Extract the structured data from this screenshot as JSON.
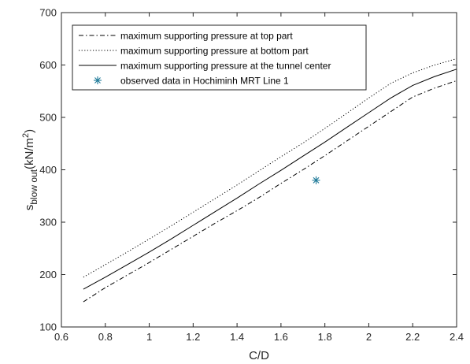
{
  "chart_data": {
    "type": "line",
    "xlabel": "C/D",
    "ylabel": {
      "main": "s",
      "sub": "blow out",
      "unit_open": "(kN/m",
      "unit_sup": "2",
      "unit_close": ")"
    },
    "xlim": [
      0.6,
      2.4
    ],
    "ylim": [
      100,
      700
    ],
    "xticks": [
      "0.6",
      "0.8",
      "1",
      "1.2",
      "1.4",
      "1.6",
      "1.8",
      "2",
      "2.2",
      "2.4"
    ],
    "yticks": [
      "100",
      "200",
      "300",
      "400",
      "500",
      "600",
      "700"
    ],
    "grid": false,
    "legend_position": "top-left",
    "series": [
      {
        "name": "maximum supporting pressure at top part",
        "style": "dashdot",
        "color": "#000000",
        "x": [
          0.7,
          0.8,
          0.9,
          1.0,
          1.1,
          1.2,
          1.3,
          1.4,
          1.5,
          1.6,
          1.7,
          1.8,
          1.9,
          2.0,
          2.1,
          2.2,
          2.3,
          2.4
        ],
        "y": [
          148,
          175,
          199,
          223,
          248,
          273,
          298,
          322,
          347,
          374,
          400,
          427,
          455,
          483,
          511,
          539,
          556,
          570
        ]
      },
      {
        "name": "maximum supporting pressure at bottom part",
        "style": "dotted",
        "color": "#000000",
        "x": [
          0.7,
          0.8,
          0.9,
          1.0,
          1.1,
          1.2,
          1.3,
          1.4,
          1.5,
          1.6,
          1.7,
          1.8,
          1.9,
          2.0,
          2.1,
          2.2,
          2.3,
          2.4
        ],
        "y": [
          195,
          219,
          243,
          268,
          293,
          319,
          345,
          371,
          398,
          425,
          451,
          479,
          508,
          537,
          565,
          585,
          600,
          612
        ]
      },
      {
        "name": "maximum supporting pressure at the tunnel center",
        "style": "solid",
        "color": "#000000",
        "x": [
          0.7,
          0.8,
          0.9,
          1.0,
          1.1,
          1.2,
          1.3,
          1.4,
          1.5,
          1.6,
          1.7,
          1.8,
          1.9,
          2.0,
          2.1,
          2.2,
          2.3,
          2.4
        ],
        "y": [
          172,
          195,
          219,
          243,
          268,
          294,
          320,
          346,
          373,
          399,
          426,
          453,
          481,
          509,
          537,
          561,
          578,
          592
        ]
      },
      {
        "name": "observed data in Hochiminh MRT Line 1",
        "style": "marker",
        "marker": "asterisk",
        "color": "#1f7a99",
        "x": [
          1.76
        ],
        "y": [
          380
        ]
      }
    ]
  }
}
